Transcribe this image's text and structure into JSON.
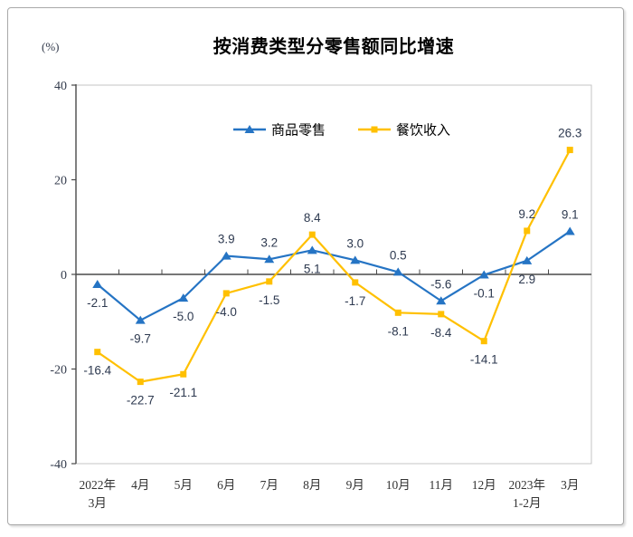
{
  "chart_data": {
    "type": "line",
    "title": "按消费类型分零售额同比增速",
    "unit": "(%)",
    "categories": [
      [
        "2022年",
        "3月"
      ],
      [
        "4月"
      ],
      [
        "5月"
      ],
      [
        "6月"
      ],
      [
        "7月"
      ],
      [
        "8月"
      ],
      [
        "9月"
      ],
      [
        "10月"
      ],
      [
        "11月"
      ],
      [
        "12月"
      ],
      [
        "2023年",
        "1-2月"
      ],
      [
        "3月"
      ]
    ],
    "series": [
      {
        "name": "商品零售",
        "color": "#2574c4",
        "marker": "triangle",
        "values": [
          -2.1,
          -9.7,
          -5.0,
          3.9,
          3.2,
          5.1,
          3.0,
          0.5,
          -5.6,
          -0.1,
          2.9,
          9.1
        ],
        "label_pos": [
          "below",
          "below",
          "below",
          "above",
          "above",
          "below",
          "above",
          "above",
          "above",
          "below",
          "below",
          "above"
        ]
      },
      {
        "name": "餐饮收入",
        "color": "#ffc000",
        "marker": "square",
        "values": [
          -16.4,
          -22.7,
          -21.1,
          -4.0,
          -1.5,
          8.4,
          -1.7,
          -8.1,
          -8.4,
          -14.1,
          9.2,
          26.3
        ],
        "label_pos": [
          "below",
          "below",
          "below",
          "below",
          "below",
          "above",
          "below",
          "below",
          "below",
          "below",
          "above",
          "above"
        ]
      }
    ],
    "yticks": [
      40,
      20,
      0,
      -20,
      -40
    ],
    "ylim": [
      -40,
      40
    ],
    "grid": false,
    "legend_position": "top-center-inside",
    "colors": {
      "axis_dark": "#4a4a4a",
      "plot_border": "#c6c6c6",
      "tick_label": "#333b4c",
      "data_label": "#2e3a50",
      "x_label": "#333333",
      "legend_text": "#000000"
    }
  }
}
